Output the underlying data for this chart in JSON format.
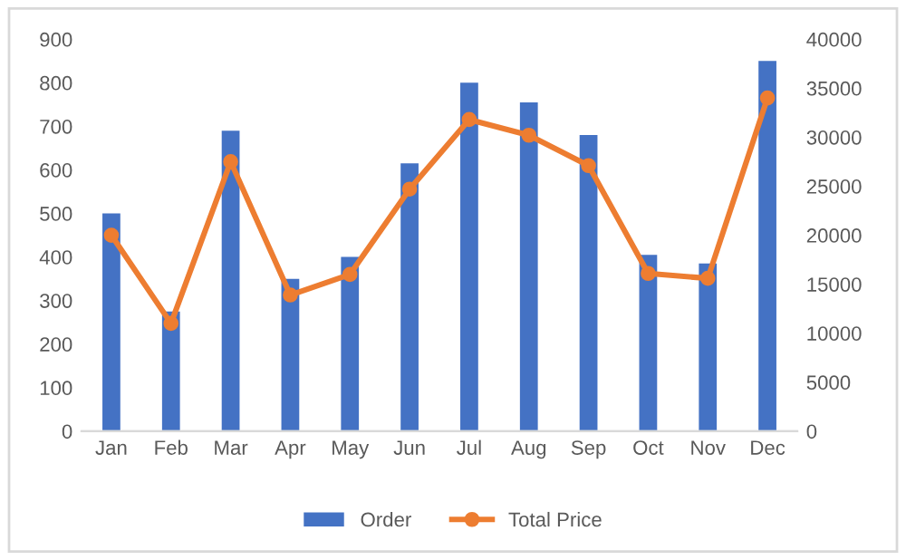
{
  "chart_data": {
    "type": "bar",
    "categories": [
      "Jan",
      "Feb",
      "Mar",
      "Apr",
      "May",
      "Jun",
      "Jul",
      "Aug",
      "Sep",
      "Oct",
      "Nov",
      "Dec"
    ],
    "series": [
      {
        "name": "Order",
        "color": "#4472c4",
        "values": [
          500,
          275,
          690,
          350,
          400,
          615,
          800,
          755,
          680,
          405,
          385,
          850
        ]
      },
      {
        "name": "Total Price",
        "type": "line",
        "axis": "y2",
        "color": "#ed7d31",
        "marker": "circle",
        "values": [
          20000,
          11000,
          27500,
          13900,
          16000,
          24700,
          31800,
          30200,
          27100,
          16100,
          15600,
          34000
        ]
      }
    ],
    "ylim": [
      0,
      900
    ],
    "yticks": [
      0,
      100,
      200,
      300,
      400,
      500,
      600,
      700,
      800,
      900
    ],
    "y2lim": [
      0,
      40000
    ],
    "y2ticks": [
      0,
      5000,
      10000,
      15000,
      20000,
      25000,
      30000,
      35000,
      40000
    ],
    "grid": false,
    "legend": "bottom"
  }
}
